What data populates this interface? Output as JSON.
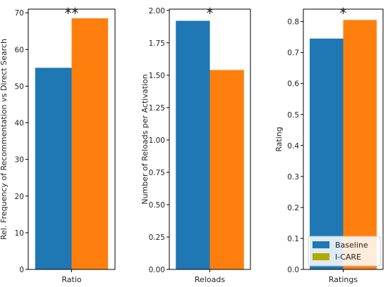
{
  "chart_data": [
    {
      "type": "bar",
      "categories": [
        "Ratio"
      ],
      "ylabel": "Rel. Frequency of Recommentation vs Direct Search",
      "ylim": [
        0,
        71
      ],
      "yticks": [
        "0",
        "10",
        "20",
        "30",
        "40",
        "50",
        "60",
        "70"
      ],
      "series": [
        {
          "name": "Baseline",
          "values": [
            55.0
          ]
        },
        {
          "name": "I-CARE",
          "values": [
            68.5
          ]
        }
      ],
      "annotation": "**"
    },
    {
      "type": "bar",
      "categories": [
        "Reloads"
      ],
      "ylabel": "Number of Reloads per Activation",
      "ylim": [
        0,
        2.01
      ],
      "yticks": [
        "0.00",
        "0.25",
        "0.50",
        "0.75",
        "1.00",
        "1.25",
        "1.50",
        "1.75",
        "2.00"
      ],
      "series": [
        {
          "name": "Baseline",
          "values": [
            1.92
          ]
        },
        {
          "name": "I-CARE",
          "values": [
            1.54
          ]
        }
      ],
      "annotation": "*"
    },
    {
      "type": "bar",
      "categories": [
        "Ratings"
      ],
      "ylabel": "Rating",
      "ylim": [
        0,
        0.84
      ],
      "yticks": [
        "0.0",
        "0.1",
        "0.2",
        "0.3",
        "0.4",
        "0.5",
        "0.6",
        "0.7",
        "0.8"
      ],
      "series": [
        {
          "name": "Baseline",
          "values": [
            0.745
          ]
        },
        {
          "name": "I-CARE",
          "values": [
            0.805
          ]
        }
      ],
      "annotation": "*",
      "legend": {
        "placement": "bottom-right",
        "entries": [
          "Baseline",
          "I-CARE"
        ]
      }
    }
  ],
  "colors": {
    "Baseline": "#1f77b4",
    "I-CARE": "#ff7f0e",
    "legend_i_care": "#b5a800"
  }
}
